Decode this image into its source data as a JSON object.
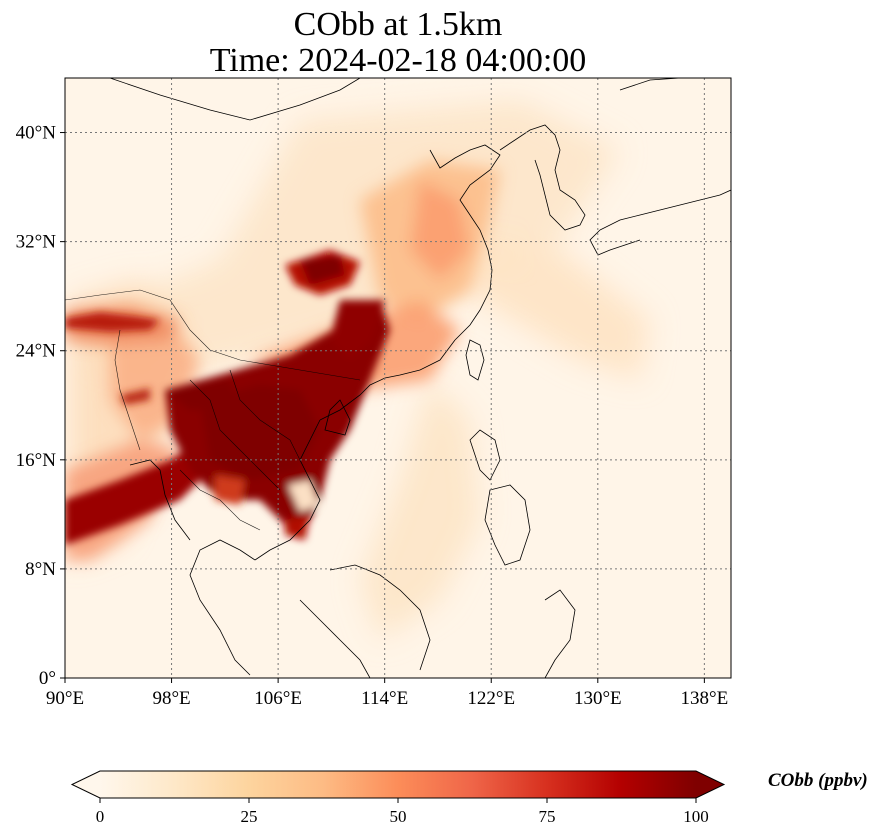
{
  "title": {
    "line1": "CObb at 1.5km",
    "line2": "Time: 2024-02-18 04:00:00"
  },
  "map": {
    "lon_range": [
      90,
      140
    ],
    "lat_range": [
      0,
      44
    ],
    "x_ticks": [
      {
        "lon": 90,
        "label": "90°E"
      },
      {
        "lon": 98,
        "label": "98°E"
      },
      {
        "lon": 106,
        "label": "106°E"
      },
      {
        "lon": 114,
        "label": "114°E"
      },
      {
        "lon": 122,
        "label": "122°E"
      },
      {
        "lon": 130,
        "label": "130°E"
      },
      {
        "lon": 138,
        "label": "138°E"
      }
    ],
    "y_ticks": [
      {
        "lat": 0,
        "label": "0°"
      },
      {
        "lat": 8,
        "label": "8°N"
      },
      {
        "lat": 16,
        "label": "16°N"
      },
      {
        "lat": 24,
        "label": "24°N"
      },
      {
        "lat": 32,
        "label": "32°N"
      },
      {
        "lat": 40,
        "label": "40°N"
      }
    ],
    "gridlines": true,
    "colormap": "OrRd",
    "background_color": "#fff5e8"
  },
  "colorbar": {
    "label": "CObb (ppbv)",
    "min": 0,
    "max": 100,
    "extend": "both",
    "ticks": [
      {
        "value": 0,
        "label": "0"
      },
      {
        "value": 25,
        "label": "25"
      },
      {
        "value": 50,
        "label": "50"
      },
      {
        "value": 75,
        "label": "75"
      },
      {
        "value": 100,
        "label": "100"
      }
    ],
    "colors": [
      "#fff7ec",
      "#fee8c8",
      "#fdd49e",
      "#fdbb84",
      "#fc8d59",
      "#ef6548",
      "#d7301f",
      "#b30000",
      "#7f0000"
    ]
  }
}
